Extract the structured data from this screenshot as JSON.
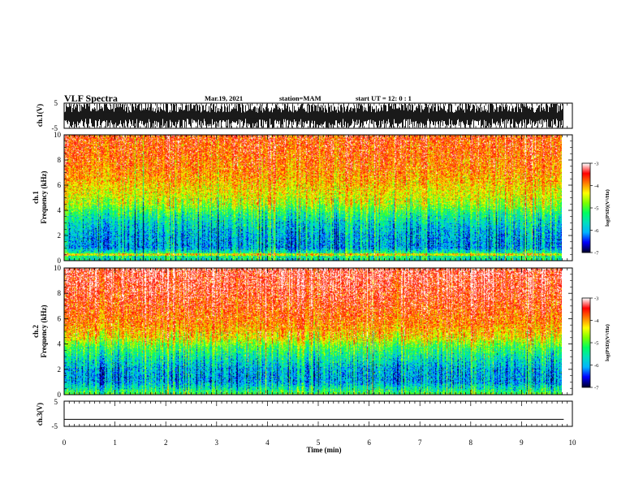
{
  "header": {
    "title": "VLF Spectra",
    "date": "Mar.19, 2021",
    "station": "station=MAM",
    "start_ut": "start UT =  12: 0  : 1"
  },
  "chart_data": [
    {
      "type": "line",
      "panel": "ch.1 waveform",
      "ylabel": "ch.1(V)",
      "ylim": [
        -5,
        5
      ],
      "yticks": [
        "5",
        "-5"
      ],
      "xlim": [
        0,
        10
      ],
      "color": "#000000",
      "description_values": {
        "typical_amplitude_range": [
          -4.5,
          4.5
        ],
        "dense": true
      }
    },
    {
      "type": "heatmap",
      "panel": "ch.1 spectrogram",
      "ylabel": "ch.1\nFrequency (kHz)",
      "ylabel_lines": [
        "ch.1",
        "Frequency (kHz)"
      ],
      "ylim": [
        0,
        10
      ],
      "yticks": [
        "0",
        "2",
        "4",
        "6",
        "8",
        "10"
      ],
      "xlim": [
        0,
        9.83
      ],
      "zlim": [
        -7,
        -3
      ],
      "zlabel": "log(PSD)(V²/Hz)",
      "zticks": [
        "-3",
        "-4",
        "-5",
        "-6",
        "-7"
      ],
      "profile_khz_vs_logpsd": [
        [
          0.0,
          -5.5
        ],
        [
          0.5,
          -5.2
        ],
        [
          1.0,
          -6.1
        ],
        [
          2.0,
          -6.0
        ],
        [
          3.0,
          -5.7
        ],
        [
          3.8,
          -5.2
        ],
        [
          4.5,
          -4.6
        ],
        [
          5.5,
          -4.3
        ],
        [
          7.0,
          -3.9
        ],
        [
          8.5,
          -3.7
        ],
        [
          10.0,
          -3.6
        ]
      ],
      "spectral_lines_khz": [
        0.4,
        0.5
      ]
    },
    {
      "type": "heatmap",
      "panel": "ch.2 spectrogram",
      "ylabel": "ch.2\nFrequency (kHz)",
      "ylabel_lines": [
        "ch.2",
        "Frequency (kHz)"
      ],
      "ylim": [
        0,
        10
      ],
      "yticks": [
        "0",
        "2",
        "4",
        "6",
        "8",
        "10"
      ],
      "xlim": [
        0,
        9.83
      ],
      "zlim": [
        -7,
        -3
      ],
      "zlabel": "log(PSD)(V²/Hz)",
      "zticks": [
        "-3",
        "-4",
        "-5",
        "-6",
        "-7"
      ],
      "profile_khz_vs_logpsd": [
        [
          0.0,
          -5.0
        ],
        [
          0.5,
          -5.6
        ],
        [
          1.0,
          -6.1
        ],
        [
          2.0,
          -6.0
        ],
        [
          3.0,
          -5.5
        ],
        [
          3.8,
          -5.0
        ],
        [
          4.5,
          -4.3
        ],
        [
          5.5,
          -3.9
        ],
        [
          7.0,
          -3.6
        ],
        [
          8.5,
          -3.4
        ],
        [
          10.0,
          -3.3
        ]
      ]
    },
    {
      "type": "line",
      "panel": "ch.3 waveform",
      "ylabel": "ch.3(V)",
      "ylim": [
        -5,
        5
      ],
      "yticks": [
        "5",
        "-5"
      ],
      "xlim": [
        0,
        10
      ],
      "x": [
        0,
        9.83
      ],
      "y": [
        -2.2,
        -2.2
      ],
      "xlabel": "Time (min)",
      "xticks": [
        "0",
        "1",
        "2",
        "3",
        "4",
        "5",
        "6",
        "7",
        "8",
        "9",
        "10"
      ]
    }
  ],
  "colors": {
    "scale": [
      "#000030",
      "#0000ff",
      "#00b4ff",
      "#00e0c0",
      "#00ff60",
      "#7dff00",
      "#ffff00",
      "#ff8000",
      "#ff0000",
      "#ffffff"
    ]
  }
}
